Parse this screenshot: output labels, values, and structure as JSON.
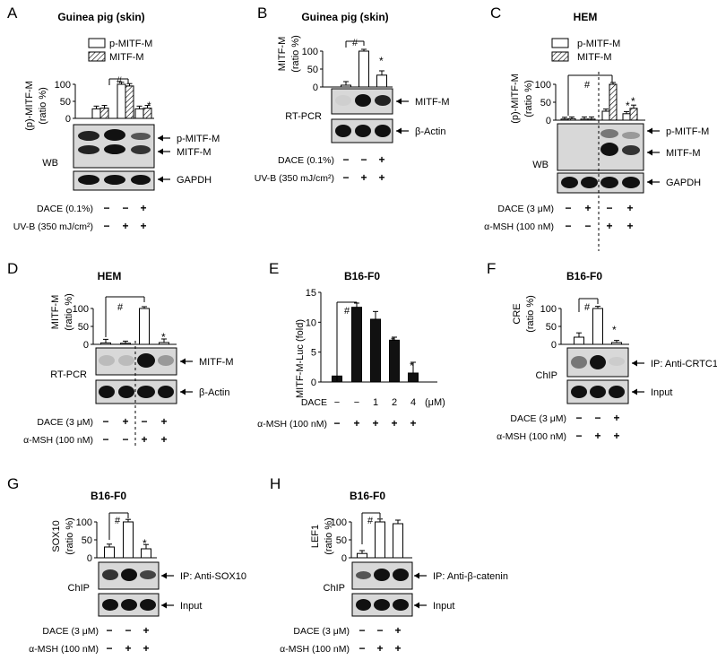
{
  "panels": [
    {
      "letter": "A",
      "title": "Guinea pig (skin)",
      "ylabel1": "(p)-MITF-M",
      "ylabel2": "(ratio %)",
      "yticks": [
        "0",
        "50",
        "100"
      ],
      "legend": [
        {
          "label": "p-MITF-M",
          "pattern": "open"
        },
        {
          "label": "MITF-M",
          "pattern": "hatched"
        }
      ],
      "blot_labels": [
        "p-MITF-M",
        "MITF-M",
        "GAPDH"
      ],
      "assay_label": "WB",
      "markers": [
        "#",
        "*"
      ],
      "conditions": [
        {
          "label": "DACE (0.1%)",
          "values": [
            "−",
            "−",
            "+"
          ]
        },
        {
          "label": "UV-B (350 mJ/cm²)",
          "values": [
            "−",
            "+",
            "+"
          ]
        }
      ]
    },
    {
      "letter": "B",
      "title": "Guinea pig (skin)",
      "ylabel1": "MITF-M",
      "ylabel2": "(ratio %)",
      "yticks": [
        "0",
        "50",
        "100"
      ],
      "blot_labels": [
        "MITF-M",
        "β-Actin"
      ],
      "assay_label": "RT-PCR",
      "markers": [
        "#",
        "*"
      ],
      "conditions": [
        {
          "label": "DACE (0.1%)",
          "values": [
            "−",
            "−",
            "+"
          ]
        },
        {
          "label": "UV-B (350 mJ/cm²)",
          "values": [
            "−",
            "+",
            "+"
          ]
        }
      ]
    },
    {
      "letter": "C",
      "title": "HEM",
      "ylabel1": "(p)-MITF-M",
      "ylabel2": "(ratio %)",
      "yticks": [
        "0",
        "50",
        "100"
      ],
      "legend": [
        {
          "label": "p-MITF-M",
          "pattern": "open"
        },
        {
          "label": "MITF-M",
          "pattern": "hatched"
        }
      ],
      "blot_labels": [
        "p-MITF-M",
        "MITF-M",
        "GAPDH"
      ],
      "assay_label": "WB",
      "markers": [
        "#",
        "*"
      ],
      "conditions": [
        {
          "label": "DACE (3 μM)",
          "values": [
            "−",
            "+",
            "−",
            "+"
          ]
        },
        {
          "label": "α-MSH (100 nM)",
          "values": [
            "−",
            "−",
            "+",
            "+"
          ]
        }
      ]
    },
    {
      "letter": "D",
      "title": "HEM",
      "ylabel1": "MITF-M",
      "ylabel2": "(ratio %)",
      "yticks": [
        "0",
        "50",
        "100"
      ],
      "blot_labels": [
        "MITF-M",
        "β-Actin"
      ],
      "assay_label": "RT-PCR",
      "markers": [
        "#",
        "*"
      ],
      "conditions": [
        {
          "label": "DACE (3 μM)",
          "values": [
            "−",
            "+",
            "−",
            "+"
          ]
        },
        {
          "label": "α-MSH (100 nM)",
          "values": [
            "−",
            "−",
            "+",
            "+"
          ]
        }
      ]
    },
    {
      "letter": "E",
      "title": "B16-F0",
      "ylabel1": "MITF-M-Luc (fold)",
      "yticks": [
        "0",
        "5",
        "10",
        "15"
      ],
      "markers": [
        "#",
        "*",
        "*"
      ],
      "dace_row": {
        "label": "DACE",
        "values": [
          "−",
          "−",
          "1",
          "2",
          "4"
        ],
        "unit": "(μM)"
      },
      "msh_row": {
        "label": "α-MSH (100 nM)",
        "values": [
          "−",
          "+",
          "+",
          "+",
          "+"
        ]
      }
    },
    {
      "letter": "F",
      "title": "B16-F0",
      "ylabel1": "CRE",
      "ylabel2": "(ratio %)",
      "yticks": [
        "0",
        "50",
        "100"
      ],
      "blot_labels": [
        "IP: Anti-CRTC1",
        "Input"
      ],
      "assay_label": "ChIP",
      "markers": [
        "#",
        "*"
      ],
      "conditions": [
        {
          "label": "DACE (3 μM)",
          "values": [
            "−",
            "−",
            "+"
          ]
        },
        {
          "label": "α-MSH (100 nM)",
          "values": [
            "−",
            "+",
            "+"
          ]
        }
      ]
    },
    {
      "letter": "G",
      "title": "B16-F0",
      "ylabel1": "SOX10",
      "ylabel2": "(ratio %)",
      "yticks": [
        "0",
        "50",
        "100"
      ],
      "blot_labels": [
        "IP: Anti-SOX10",
        "Input"
      ],
      "assay_label": "ChIP",
      "markers": [
        "#",
        "*"
      ],
      "conditions": [
        {
          "label": "DACE (3 μM)",
          "values": [
            "−",
            "−",
            "+"
          ]
        },
        {
          "label": "α-MSH (100 nM)",
          "values": [
            "−",
            "+",
            "+"
          ]
        }
      ]
    },
    {
      "letter": "H",
      "title": "B16-F0",
      "ylabel1": "LEF1",
      "ylabel2": "(ratio %)",
      "yticks": [
        "0",
        "50",
        "100"
      ],
      "blot_labels": [
        "IP: Anti-β-catenin",
        "Input"
      ],
      "assay_label": "ChIP",
      "markers": [
        "#"
      ],
      "conditions": [
        {
          "label": "DACE (3 μM)",
          "values": [
            "−",
            "−",
            "+"
          ]
        },
        {
          "label": "α-MSH (100 nM)",
          "values": [
            "−",
            "+",
            "+"
          ]
        }
      ]
    }
  ],
  "chart_data": [
    {
      "panel": "A",
      "type": "bar",
      "ylim": [
        0,
        100
      ],
      "categories": [
        "1",
        "2",
        "3"
      ],
      "series": [
        {
          "name": "p-MITF-M",
          "values": [
            28,
            100,
            28
          ],
          "errors": [
            8,
            6,
            8
          ]
        },
        {
          "name": "MITF-M",
          "values": [
            30,
            95,
            30
          ],
          "errors": [
            8,
            7,
            8
          ]
        }
      ]
    },
    {
      "panel": "B",
      "type": "bar",
      "ylim": [
        0,
        100
      ],
      "categories": [
        "1",
        "2",
        "3"
      ],
      "series": [
        {
          "values": [
            5,
            100,
            33
          ],
          "errors": [
            10,
            5,
            12
          ]
        }
      ]
    },
    {
      "panel": "C",
      "type": "bar",
      "ylim": [
        0,
        100
      ],
      "categories": [
        "1",
        "2",
        "3",
        "4"
      ],
      "series": [
        {
          "name": "p-MITF-M",
          "values": [
            3,
            3,
            25,
            18
          ],
          "errors": [
            5,
            6,
            6,
            6
          ]
        },
        {
          "name": "MITF-M",
          "values": [
            4,
            3,
            100,
            33
          ],
          "errors": [
            5,
            6,
            5,
            9
          ]
        }
      ]
    },
    {
      "panel": "D",
      "type": "bar",
      "ylim": [
        0,
        100
      ],
      "categories": [
        "1",
        "2",
        "3",
        "4"
      ],
      "series": [
        {
          "values": [
            4,
            3,
            100,
            5
          ],
          "errors": [
            10,
            6,
            5,
            10
          ]
        }
      ]
    },
    {
      "panel": "E",
      "type": "bar",
      "ylim": [
        0,
        15
      ],
      "categories": [
        "1",
        "2",
        "3",
        "4",
        "5"
      ],
      "series": [
        {
          "values": [
            1,
            12.5,
            10.5,
            7,
            1.5
          ],
          "errors": [
            0,
            0.7,
            1.3,
            0.5,
            1.8
          ]
        }
      ]
    },
    {
      "panel": "F",
      "type": "bar",
      "ylim": [
        0,
        100
      ],
      "categories": [
        "1",
        "2",
        "3"
      ],
      "series": [
        {
          "values": [
            20,
            100,
            5
          ],
          "errors": [
            12,
            6,
            6
          ]
        }
      ]
    },
    {
      "panel": "G",
      "type": "bar",
      "ylim": [
        0,
        100
      ],
      "categories": [
        "1",
        "2",
        "3"
      ],
      "series": [
        {
          "values": [
            30,
            100,
            25
          ],
          "errors": [
            8,
            7,
            12
          ]
        }
      ]
    },
    {
      "panel": "H",
      "type": "bar",
      "ylim": [
        0,
        100
      ],
      "categories": [
        "1",
        "2",
        "3"
      ],
      "series": [
        {
          "values": [
            12,
            100,
            95
          ],
          "errors": [
            8,
            8,
            10
          ]
        }
      ]
    }
  ]
}
